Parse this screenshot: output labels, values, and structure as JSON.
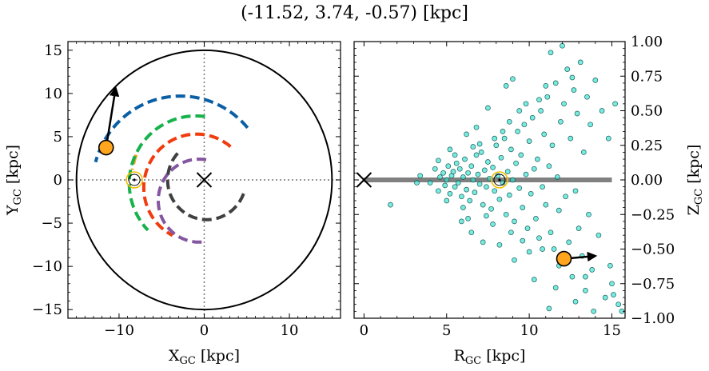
{
  "figure": {
    "title": "(-11.52, 3.74, -0.57) [kpc]"
  },
  "chart_data": [
    {
      "type": "line",
      "panel": "left",
      "xlabel": "X",
      "xlabel_sub": "GC",
      "xlabel_unit": " [kpc]",
      "ylabel": "Y",
      "ylabel_sub": "GC",
      "ylabel_unit": " [kpc]",
      "xlim": [
        -16,
        16
      ],
      "ylim": [
        -16,
        16
      ],
      "xticks": [
        -10,
        0,
        10
      ],
      "xtick_labels": [
        "−10",
        "0",
        "10"
      ],
      "yticks": [
        -15,
        -10,
        -5,
        0,
        5,
        10,
        15
      ],
      "ytick_labels": [
        "−15",
        "−10",
        "−5",
        "0",
        "5",
        "10",
        "15"
      ],
      "boundary_circle_radius": 15,
      "crosshair": {
        "x": 0,
        "y": 0
      },
      "galactic_center_marker": {
        "x": 0,
        "y": 0,
        "symbol": "x"
      },
      "sun_marker": {
        "x": -8.2,
        "y": 0,
        "symbol": "circled-dot",
        "color": "#f0c000"
      },
      "object": {
        "x": -11.52,
        "y": 3.74,
        "color": "#ffa51e"
      },
      "velocity_arrow": {
        "from": [
          -11.52,
          3.74
        ],
        "to": [
          -10.4,
          10.6
        ]
      },
      "spiral_arms": [
        {
          "color": "#0b5fa5",
          "radius": 10.3,
          "center": [
            -2.8,
            -0.6
          ],
          "start_deg": 40,
          "end_deg": 165
        },
        {
          "color": "#f5a21c",
          "radius": 8.5,
          "center": [
            0,
            0
          ],
          "start_deg": 160,
          "end_deg": 172
        },
        {
          "color": "#17b24b",
          "radius": 7.8,
          "center": [
            -1.0,
            -0.4
          ],
          "start_deg": 82,
          "end_deg": 224
        },
        {
          "color": "#f03c0f",
          "radius": 6.2,
          "center": [
            -0.9,
            -0.9
          ],
          "start_deg": 50,
          "end_deg": 243
        },
        {
          "color": "#8556a0",
          "radius": 4.8,
          "center": [
            -0.6,
            -2.4
          ],
          "start_deg": 80,
          "end_deg": 275
        },
        {
          "color": "#404040",
          "radius": 4.6,
          "center": [
            0.3,
            0.0
          ],
          "start_deg": 138,
          "end_deg": 340
        }
      ]
    },
    {
      "type": "scatter",
      "panel": "right",
      "xlabel": "R",
      "xlabel_sub": "GC",
      "xlabel_unit": " [kpc]",
      "ylabel": "Z",
      "ylabel_sub": "GC",
      "ylabel_unit": " [kpc]",
      "xlim": [
        -0.6,
        15.8
      ],
      "ylim": [
        -1.0,
        1.0
      ],
      "xticks": [
        0,
        5,
        10,
        15
      ],
      "xtick_labels": [
        "0",
        "5",
        "10",
        "15"
      ],
      "yticks": [
        -1.0,
        -0.75,
        -0.5,
        -0.25,
        0.0,
        0.25,
        0.5,
        0.75,
        1.0
      ],
      "ytick_labels": [
        "−1.00",
        "−0.75",
        "−0.50",
        "−0.25",
        "0.00",
        "0.25",
        "0.50",
        "0.75",
        "1.00"
      ],
      "disk_line": {
        "x0": 0,
        "x1": 15,
        "z": 0,
        "color": "#808080"
      },
      "galactic_center_marker": {
        "x": 0,
        "z": 0,
        "symbol": "x"
      },
      "sun_marker": {
        "x": 8.2,
        "z": 0,
        "symbol": "circled-dot",
        "color": "#f0c000"
      },
      "object": {
        "x": 12.1,
        "z": -0.57,
        "color": "#ffa51e"
      },
      "velocity_arrow": {
        "from": [
          12.1,
          -0.57
        ],
        "to": [
          14.0,
          -0.55
        ]
      },
      "point_color": "#30e0d0",
      "points": [
        [
          1.6,
          -0.18
        ],
        [
          3.2,
          -0.02
        ],
        [
          3.4,
          0.03
        ],
        [
          4.0,
          -0.02
        ],
        [
          4.3,
          0.08
        ],
        [
          4.5,
          -0.08
        ],
        [
          4.6,
          0.02
        ],
        [
          4.8,
          0.05
        ],
        [
          4.9,
          -0.04
        ],
        [
          5.0,
          0.0
        ],
        [
          5.1,
          0.1
        ],
        [
          5.2,
          -0.1
        ],
        [
          5.3,
          0.03
        ],
        [
          5.4,
          0.06
        ],
        [
          5.5,
          -0.05
        ],
        [
          5.6,
          0.12
        ],
        [
          5.7,
          -0.02
        ],
        [
          5.8,
          0.08
        ],
        [
          5.9,
          -0.12
        ],
        [
          6.0,
          0.02
        ],
        [
          6.1,
          0.15
        ],
        [
          6.2,
          -0.07
        ],
        [
          6.3,
          0.05
        ],
        [
          6.4,
          -0.15
        ],
        [
          6.5,
          0.1
        ],
        [
          6.6,
          0.0
        ],
        [
          6.7,
          -0.09
        ],
        [
          6.8,
          0.18
        ],
        [
          6.9,
          0.04
        ],
        [
          7.0,
          -0.03
        ],
        [
          7.1,
          0.2
        ],
        [
          7.2,
          -0.18
        ],
        [
          7.3,
          0.07
        ],
        [
          7.4,
          -0.05
        ],
        [
          7.5,
          0.13
        ],
        [
          7.6,
          0.01
        ],
        [
          7.7,
          -0.21
        ],
        [
          7.8,
          0.09
        ],
        [
          7.9,
          -0.08
        ],
        [
          8.0,
          0.25
        ],
        [
          8.1,
          0.03
        ],
        [
          8.2,
          -0.14
        ],
        [
          8.3,
          0.16
        ],
        [
          8.4,
          -0.02
        ],
        [
          8.5,
          0.3
        ],
        [
          8.6,
          -0.25
        ],
        [
          8.7,
          0.06
        ],
        [
          8.8,
          -0.11
        ],
        [
          8.9,
          0.22
        ],
        [
          9.0,
          0.0
        ],
        [
          9.1,
          -0.3
        ],
        [
          9.2,
          0.12
        ],
        [
          9.3,
          0.35
        ],
        [
          9.4,
          -0.06
        ],
        [
          9.5,
          0.18
        ],
        [
          9.6,
          -0.2
        ],
        [
          9.7,
          0.4
        ],
        [
          9.8,
          0.04
        ],
        [
          9.9,
          -0.35
        ],
        [
          10.0,
          0.28
        ],
        [
          10.1,
          -0.1
        ],
        [
          10.2,
          0.45
        ],
        [
          10.3,
          0.08
        ],
        [
          10.4,
          -0.28
        ],
        [
          10.5,
          0.15
        ],
        [
          10.6,
          -0.42
        ],
        [
          10.7,
          0.5
        ],
        [
          10.8,
          -0.05
        ],
        [
          10.9,
          0.33
        ],
        [
          11.0,
          -0.18
        ],
        [
          11.1,
          0.6
        ],
        [
          11.2,
          0.1
        ],
        [
          11.3,
          -0.38
        ],
        [
          11.4,
          0.25
        ],
        [
          11.5,
          -0.5
        ],
        [
          11.6,
          0.7
        ],
        [
          11.7,
          0.02
        ],
        [
          11.8,
          -0.22
        ],
        [
          11.9,
          0.42
        ],
        [
          12.0,
          -0.6
        ],
        [
          12.1,
          0.55
        ],
        [
          12.2,
          -0.12
        ],
        [
          12.3,
          0.8
        ],
        [
          12.4,
          -0.45
        ],
        [
          12.5,
          0.3
        ],
        [
          12.6,
          -0.7
        ],
        [
          12.7,
          0.65
        ],
        [
          12.8,
          -0.08
        ],
        [
          12.9,
          0.48
        ],
        [
          13.0,
          -0.35
        ],
        [
          13.1,
          0.85
        ],
        [
          13.2,
          -0.55
        ],
        [
          13.3,
          0.2
        ],
        [
          13.4,
          -0.8
        ],
        [
          13.5,
          0.6
        ],
        [
          13.6,
          -0.25
        ],
        [
          13.7,
          0.4
        ],
        [
          13.8,
          -0.65
        ],
        [
          14.0,
          0.72
        ],
        [
          14.2,
          -0.4
        ],
        [
          14.4,
          0.5
        ],
        [
          14.6,
          -0.85
        ],
        [
          14.8,
          0.3
        ],
        [
          15.0,
          -0.75
        ],
        [
          15.2,
          0.55
        ],
        [
          15.4,
          -0.9
        ],
        [
          15.6,
          -0.95
        ],
        [
          12.0,
          0.97
        ],
        [
          11.3,
          0.92
        ],
        [
          9.0,
          0.73
        ],
        [
          8.6,
          0.68
        ],
        [
          7.5,
          0.52
        ],
        [
          6.8,
          0.38
        ],
        [
          6.2,
          0.33
        ],
        [
          5.9,
          -0.3
        ],
        [
          6.5,
          -0.38
        ],
        [
          7.2,
          -0.45
        ],
        [
          8.2,
          -0.47
        ],
        [
          9.1,
          -0.58
        ],
        [
          10.3,
          -0.72
        ],
        [
          11.2,
          -0.93
        ],
        [
          12.8,
          -0.88
        ],
        [
          13.9,
          -0.95
        ],
        [
          14.9,
          -0.62
        ],
        [
          15.1,
          -0.83
        ],
        [
          7.0,
          0.26
        ],
        [
          7.8,
          -0.32
        ],
        [
          8.8,
          0.42
        ],
        [
          9.6,
          -0.44
        ],
        [
          10.6,
          0.58
        ],
        [
          6.0,
          -0.2
        ],
        [
          6.6,
          0.24
        ],
        [
          7.4,
          -0.26
        ],
        [
          8.4,
          0.35
        ],
        [
          9.4,
          0.5
        ],
        [
          10.0,
          -0.52
        ],
        [
          11.0,
          0.68
        ],
        [
          11.8,
          -0.62
        ],
        [
          12.6,
          0.74
        ],
        [
          13.4,
          -0.7
        ],
        [
          5.5,
          0.18
        ],
        [
          5.0,
          -0.15
        ],
        [
          4.5,
          0.14
        ],
        [
          5.2,
          0.22
        ],
        [
          6.3,
          -0.28
        ],
        [
          7.9,
          0.3
        ],
        [
          8.9,
          -0.38
        ],
        [
          9.8,
          0.55
        ],
        [
          10.8,
          -0.5
        ],
        [
          11.6,
          -0.78
        ]
      ]
    }
  ]
}
